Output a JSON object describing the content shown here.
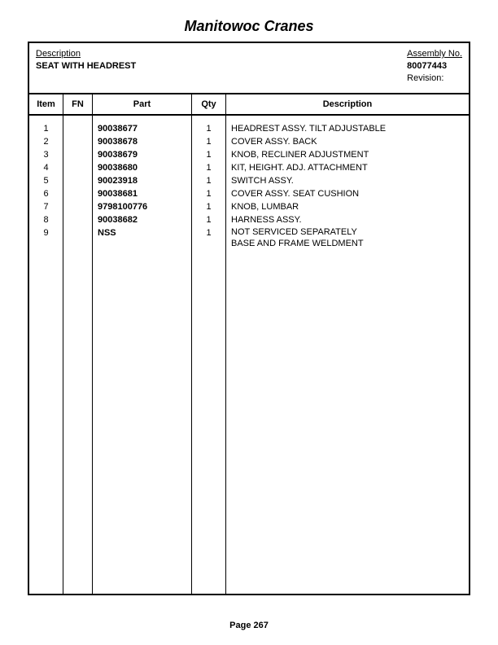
{
  "page_title": "Manitowoc Cranes",
  "header": {
    "left_label": "Description",
    "left_value": "SEAT WITH HEADREST",
    "right_label": "Assembly No.",
    "right_value": "80077443",
    "revision_label": "Revision:"
  },
  "columns": {
    "item": "Item",
    "fn": "FN",
    "part": "Part",
    "qty": "Qty",
    "desc": "Description"
  },
  "rows": [
    {
      "item": "1",
      "fn": "",
      "part": "90038677",
      "qty": "1",
      "desc": "HEADREST ASSY. TILT ADJUSTABLE"
    },
    {
      "item": "2",
      "fn": "",
      "part": "90038678",
      "qty": "1",
      "desc": "COVER ASSY. BACK"
    },
    {
      "item": "3",
      "fn": "",
      "part": "90038679",
      "qty": "1",
      "desc": "KNOB, RECLINER ADJUSTMENT"
    },
    {
      "item": "4",
      "fn": "",
      "part": "90038680",
      "qty": "1",
      "desc": "KIT, HEIGHT. ADJ. ATTACHMENT"
    },
    {
      "item": "5",
      "fn": "",
      "part": "90023918",
      "qty": "1",
      "desc": "SWITCH ASSY."
    },
    {
      "item": "6",
      "fn": "",
      "part": "90038681",
      "qty": "1",
      "desc": "COVER ASSY. SEAT CUSHION"
    },
    {
      "item": "7",
      "fn": "",
      "part": "9798100776",
      "qty": "1",
      "desc": "KNOB, LUMBAR"
    },
    {
      "item": "8",
      "fn": "",
      "part": "90038682",
      "qty": "1",
      "desc": "HARNESS ASSY."
    },
    {
      "item": "9",
      "fn": "",
      "part": "NSS",
      "qty": "1",
      "desc": "NOT SERVICED SEPARATELY\nBASE AND FRAME WELDMENT"
    }
  ],
  "footer": "Page 267"
}
